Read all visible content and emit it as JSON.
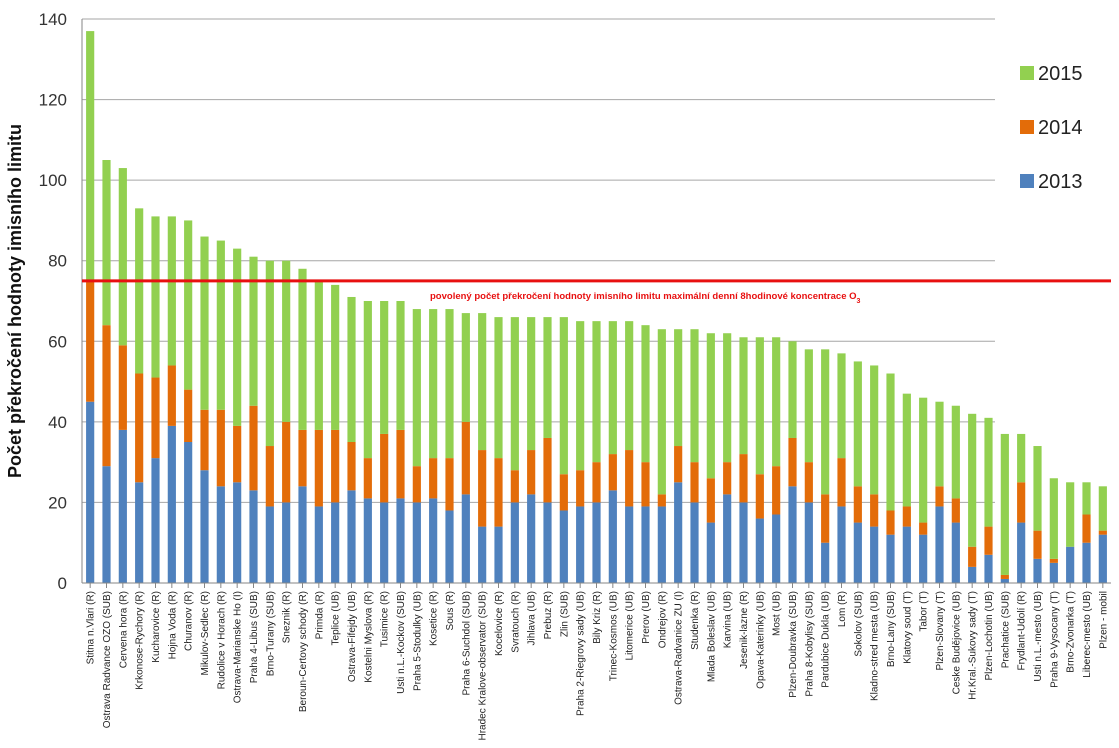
{
  "chart_data": {
    "type": "bar",
    "stacked": true,
    "ylabel": "Počet překročení hodnoty imisního limitu",
    "xlabel": "",
    "ylim": [
      0,
      140
    ],
    "yticks": [
      0,
      20,
      40,
      60,
      80,
      100,
      120,
      140
    ],
    "grid": true,
    "legend": "right",
    "categories": [
      "Stitna n.Vlari (R)",
      "Ostrava Radvance OZO (SUB)",
      "Cervena hora (R)",
      "Krkonose-Rychory (R)",
      "Kucharovice (R)",
      "Hojna Voda (R)",
      "Churanov (R)",
      "Mikulov-Sedlec (R)",
      "Rudolice v Horach (R)",
      "Ostrava-Marianske Ho (I)",
      "Praha 4-Libus (SUB)",
      "Brno-Turany (SUB)",
      "Sneznik (R)",
      "Beroun-Certovy schody (R)",
      "Primda (R)",
      "Teplice (UB)",
      "Ostrava-Fifejdy (UB)",
      "Kostelni Myslova (R)",
      "Tusimice (R)",
      "Usti n.L.-Kockov (SUB)",
      "Praha 5-Stodulky (UB)",
      "Kosetice (R)",
      "Sous (R)",
      "Praha 6-Suchdol (SUB)",
      "Hradec Kralove-observator (SUB)",
      "Kocelovice (R)",
      "Svratouch (R)",
      "Jihlava (UB)",
      "Prebuz (R)",
      "Zlin (SUB)",
      "Praha 2-Riegrovy sady (UB)",
      "Bily Kriz (R)",
      "Trinec-Kosmos (UB)",
      "Litomerice (UB)",
      "Prerov (UB)",
      "Ondrejov (R)",
      "Ostrava-Radvanice ZU (I)",
      "Studenka (R)",
      "Mlada Boleslav (UB)",
      "Karvina (UB)",
      "Jesenik-lazne (R)",
      "Opava-Katerinky (UB)",
      "Most (UB)",
      "Plzen-Doubravka (SUB)",
      "Praha 8-Kobylisy (SUB)",
      "Pardubice Dukla (UB)",
      "Lom (R)",
      "Sokolov (SUB)",
      "Kladno-stred mesta (UB)",
      "Brno-Lany (SUB)",
      "Klatovy soud (T)",
      "Tabor (T)",
      "Plzen-Slovany (T)",
      "Ceske Budějovice (UB)",
      "Hr.Kral.-Sukovy sady (T)",
      "Plzen-Lochotin (UB)",
      "Prachatice (SUB)",
      "Frydlant-Udolí (R)",
      "Usti n.L.-mesto (UB)",
      "Praha 9-Vysocany (T)",
      "Brno-Zvonarka (T)",
      "Liberec-mesto (UB)",
      "Plzen - mobil"
    ],
    "series": [
      {
        "name": "2013",
        "color": "#4f81bd",
        "values": [
          45,
          29,
          38,
          25,
          31,
          39,
          35,
          28,
          24,
          25,
          23,
          19,
          20,
          24,
          19,
          20,
          23,
          21,
          20,
          21,
          20,
          21,
          18,
          22,
          14,
          14,
          20,
          22,
          20,
          18,
          19,
          20,
          23,
          19,
          19,
          19,
          25,
          20,
          15,
          22,
          20,
          16,
          17,
          24,
          20,
          10,
          19,
          15,
          14,
          12,
          14,
          12,
          19,
          15,
          4,
          7,
          1,
          15,
          6,
          5,
          9,
          10,
          12
        ]
      },
      {
        "name": "2014",
        "color": "#e36c09",
        "values": [
          30,
          35,
          21,
          27,
          20,
          15,
          13,
          15,
          19,
          14,
          21,
          15,
          20,
          14,
          19,
          18,
          12,
          10,
          17,
          17,
          9,
          10,
          13,
          18,
          19,
          17,
          8,
          11,
          16,
          9,
          9,
          10,
          9,
          14,
          11,
          3,
          9,
          10,
          11,
          8,
          12,
          11,
          12,
          12,
          10,
          12,
          12,
          9,
          8,
          6,
          5,
          3,
          5,
          6,
          5,
          7,
          1,
          10,
          7,
          1,
          0,
          7,
          1
        ]
      },
      {
        "name": "2015",
        "color": "#92d050",
        "values": [
          62,
          41,
          44,
          41,
          40,
          37,
          42,
          43,
          42,
          44,
          37,
          46,
          40,
          40,
          37,
          36,
          36,
          39,
          33,
          32,
          39,
          37,
          37,
          27,
          34,
          35,
          38,
          33,
          30,
          39,
          37,
          35,
          33,
          32,
          34,
          41,
          29,
          33,
          36,
          32,
          29,
          34,
          32,
          24,
          28,
          36,
          26,
          31,
          32,
          34,
          28,
          31,
          21,
          23,
          33,
          27,
          35,
          12,
          21,
          20,
          16,
          8,
          11
        ]
      }
    ],
    "threshold": {
      "value": 75,
      "color": "#e81010",
      "label": "povolený počet překročení hodnoty imisního limitu maximální denní 8hodinové koncentrace O3"
    }
  }
}
